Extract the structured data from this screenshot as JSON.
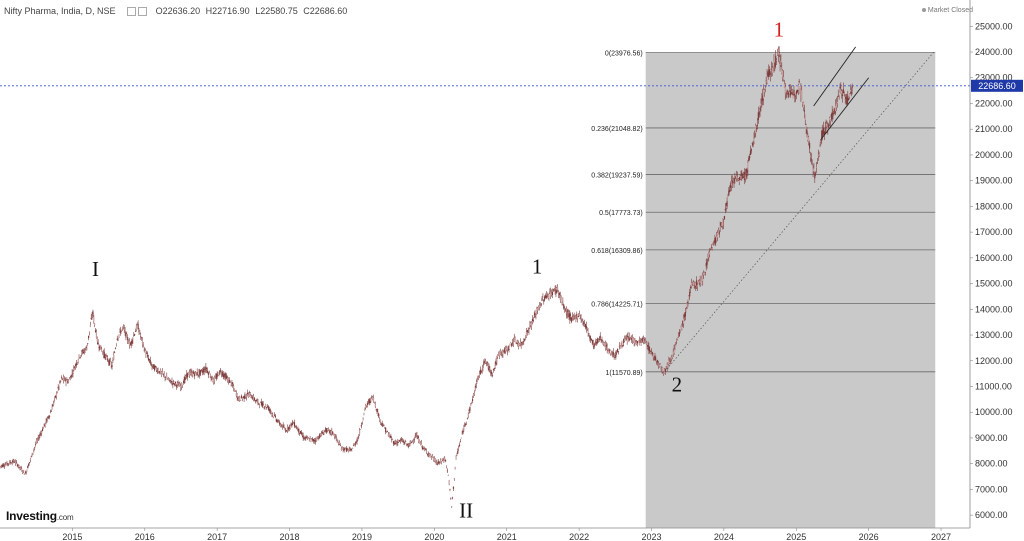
{
  "header": {
    "symbol": "Nifty Pharma, India, D, NSE",
    "open": "O22636.20",
    "high": "H22716.90",
    "low": "L22580.75",
    "close": "C22686.60",
    "status": "Market Closed"
  },
  "brand": {
    "name": "Investing",
    "suffix": ".com"
  },
  "chart_data": {
    "type": "candlestick",
    "x_axis": {
      "labels": [
        "2015",
        "2016",
        "2017",
        "2018",
        "2019",
        "2020",
        "2021",
        "2022",
        "2023",
        "2024",
        "2025",
        "2026",
        "2027"
      ],
      "range": [
        2014.0,
        2027.4
      ]
    },
    "y_axis": {
      "labels": [
        "6000.00",
        "7000.00",
        "8000.00",
        "9000.00",
        "10000.00",
        "11000.00",
        "12000.00",
        "13000.00",
        "14000.00",
        "15000.00",
        "16000.00",
        "17000.00",
        "18000.00",
        "19000.00",
        "20000.00",
        "21000.00",
        "22000.00",
        "23000.00",
        "24000.00",
        "25000.00"
      ],
      "range": [
        5500,
        25400
      ]
    },
    "current_price": 22686.6,
    "current_price_label": "22686.60",
    "price_path": [
      [
        2014.0,
        7900
      ],
      [
        2014.2,
        8100
      ],
      [
        2014.35,
        7600
      ],
      [
        2014.5,
        8800
      ],
      [
        2014.7,
        10000
      ],
      [
        2014.85,
        11300
      ],
      [
        2014.95,
        11200
      ],
      [
        2015.1,
        12200
      ],
      [
        2015.2,
        12500
      ],
      [
        2015.28,
        13900
      ],
      [
        2015.35,
        12700
      ],
      [
        2015.45,
        12200
      ],
      [
        2015.55,
        11800
      ],
      [
        2015.62,
        12900
      ],
      [
        2015.7,
        13300
      ],
      [
        2015.8,
        12600
      ],
      [
        2015.9,
        13400
      ],
      [
        2016.0,
        12400
      ],
      [
        2016.1,
        11800
      ],
      [
        2016.2,
        11600
      ],
      [
        2016.35,
        11200
      ],
      [
        2016.5,
        11000
      ],
      [
        2016.6,
        11500
      ],
      [
        2016.75,
        11500
      ],
      [
        2016.85,
        11700
      ],
      [
        2016.95,
        11200
      ],
      [
        2017.05,
        11600
      ],
      [
        2017.2,
        11100
      ],
      [
        2017.3,
        10500
      ],
      [
        2017.45,
        10700
      ],
      [
        2017.55,
        10400
      ],
      [
        2017.7,
        10200
      ],
      [
        2017.85,
        9600
      ],
      [
        2017.95,
        9300
      ],
      [
        2018.05,
        9600
      ],
      [
        2018.2,
        9000
      ],
      [
        2018.35,
        8900
      ],
      [
        2018.5,
        9300
      ],
      [
        2018.6,
        9200
      ],
      [
        2018.72,
        8600
      ],
      [
        2018.85,
        8500
      ],
      [
        2018.95,
        9000
      ],
      [
        2019.05,
        10200
      ],
      [
        2019.15,
        10600
      ],
      [
        2019.25,
        9700
      ],
      [
        2019.35,
        9200
      ],
      [
        2019.45,
        8800
      ],
      [
        2019.55,
        8900
      ],
      [
        2019.65,
        8700
      ],
      [
        2019.75,
        9100
      ],
      [
        2019.85,
        8600
      ],
      [
        2019.95,
        8300
      ],
      [
        2020.05,
        8000
      ],
      [
        2020.15,
        8200
      ],
      [
        2020.2,
        7400
      ],
      [
        2020.24,
        6300
      ],
      [
        2020.3,
        8200
      ],
      [
        2020.4,
        9300
      ],
      [
        2020.5,
        10200
      ],
      [
        2020.6,
        11300
      ],
      [
        2020.7,
        12000
      ],
      [
        2020.8,
        11500
      ],
      [
        2020.9,
        12300
      ],
      [
        2021.0,
        12400
      ],
      [
        2021.1,
        12800
      ],
      [
        2021.2,
        12600
      ],
      [
        2021.3,
        13200
      ],
      [
        2021.4,
        13800
      ],
      [
        2021.5,
        14400
      ],
      [
        2021.6,
        14600
      ],
      [
        2021.7,
        14800
      ],
      [
        2021.8,
        14000
      ],
      [
        2021.9,
        13600
      ],
      [
        2022.0,
        13800
      ],
      [
        2022.1,
        13300
      ],
      [
        2022.2,
        12600
      ],
      [
        2022.3,
        12900
      ],
      [
        2022.4,
        12400
      ],
      [
        2022.5,
        12200
      ],
      [
        2022.6,
        12700
      ],
      [
        2022.7,
        12900
      ],
      [
        2022.8,
        12700
      ],
      [
        2022.9,
        12800
      ],
      [
        2023.0,
        12300
      ],
      [
        2023.1,
        11900
      ],
      [
        2023.18,
        11570
      ],
      [
        2023.3,
        12300
      ],
      [
        2023.45,
        13600
      ],
      [
        2023.55,
        14900
      ],
      [
        2023.7,
        15100
      ],
      [
        2023.8,
        16200
      ],
      [
        2023.9,
        16800
      ],
      [
        2024.0,
        17500
      ],
      [
        2024.1,
        18900
      ],
      [
        2024.2,
        19100
      ],
      [
        2024.3,
        19200
      ],
      [
        2024.4,
        20400
      ],
      [
        2024.5,
        21800
      ],
      [
        2024.6,
        23000
      ],
      [
        2024.7,
        23600
      ],
      [
        2024.76,
        23976
      ],
      [
        2024.85,
        22500
      ],
      [
        2024.95,
        22300
      ],
      [
        2025.05,
        22800
      ],
      [
        2025.12,
        21500
      ],
      [
        2025.2,
        20000
      ],
      [
        2025.26,
        19100
      ],
      [
        2025.35,
        20800
      ],
      [
        2025.45,
        21200
      ],
      [
        2025.55,
        21900
      ],
      [
        2025.62,
        22600
      ],
      [
        2025.7,
        22100
      ],
      [
        2025.78,
        22686
      ]
    ],
    "fibonacci": {
      "x_start": 2022.92,
      "x_end": 2026.92,
      "levels": [
        {
          "label": "0(23976.56)",
          "value": 23976.56
        },
        {
          "label": "0.236(21048.82)",
          "value": 21048.82
        },
        {
          "label": "0.382(19237.59)",
          "value": 19237.59
        },
        {
          "label": "0.5(17773.73)",
          "value": 17773.73
        },
        {
          "label": "0.618(16309.86)",
          "value": 16309.86
        },
        {
          "label": "0.786(14225.71)",
          "value": 14225.71
        },
        {
          "label": "1(11570.89)",
          "value": 11570.89
        }
      ]
    },
    "wave_labels": [
      {
        "text": "I",
        "x": 2015.32,
        "y": 15300,
        "color": "#111111"
      },
      {
        "text": "II",
        "x": 2020.44,
        "y": 5900,
        "color": "#111111"
      },
      {
        "text": "1",
        "x": 2021.42,
        "y": 15400,
        "color": "#111111"
      },
      {
        "text": "1",
        "x": 2024.76,
        "y": 24600,
        "color": "#d62020"
      },
      {
        "text": "2",
        "x": 2023.35,
        "y": 10800,
        "color": "#111111"
      }
    ],
    "trendlines": [
      {
        "style": "solid",
        "from": [
          2025.24,
          21900
        ],
        "to": [
          2025.82,
          24200
        ]
      },
      {
        "style": "solid",
        "from": [
          2025.34,
          20600
        ],
        "to": [
          2026.0,
          23000
        ]
      },
      {
        "style": "dotted",
        "from": [
          2023.18,
          11570
        ],
        "to": [
          2026.9,
          24000
        ]
      }
    ],
    "colors": {
      "candle": "#7d3a3a",
      "fib_fill": "#c9c9c9",
      "fib_line": "#6a6a6a",
      "price_line": "#3b57d6",
      "price_badge": "#1f3aa8"
    }
  }
}
